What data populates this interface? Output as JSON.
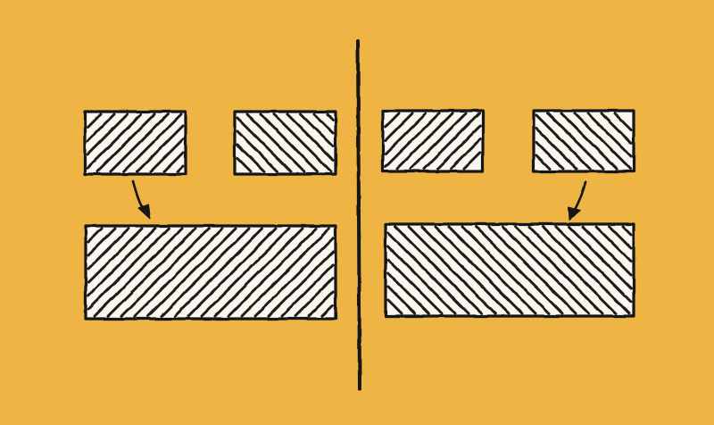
{
  "colors": {
    "background": "#eeb444",
    "box_fill": "#faf7ee",
    "ink": "#141414"
  },
  "diagram": {
    "panels": [
      {
        "side": "left",
        "hatch_direction": "forward-slash",
        "arrow_from": "top-left-box",
        "arrow_to": "bottom-box"
      },
      {
        "side": "right",
        "hatch_direction": "back-slash",
        "arrow_from": "top-right-box",
        "arrow_to": "bottom-box"
      }
    ],
    "boxes_per_panel": 3,
    "separator": "vertical-line"
  }
}
